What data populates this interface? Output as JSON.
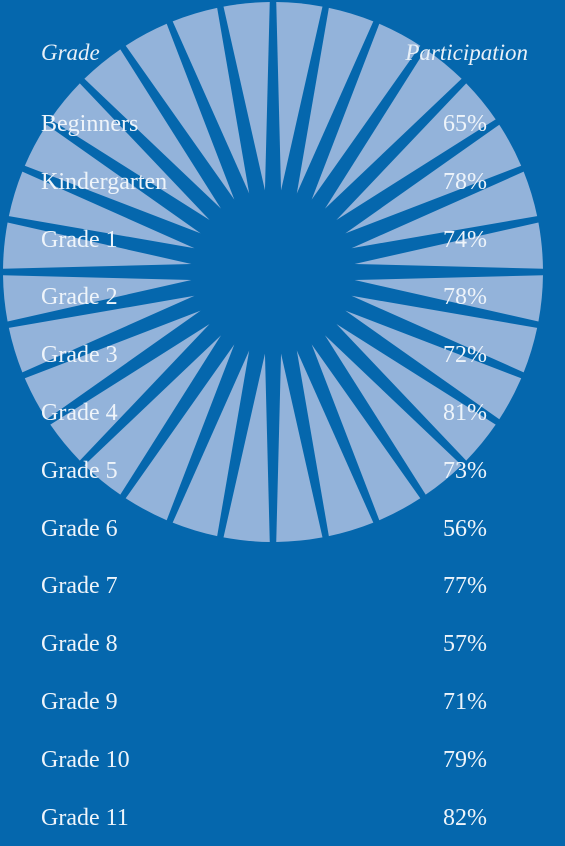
{
  "table": {
    "header": [
      "Grade",
      "Participation"
    ],
    "rows": [
      [
        "Beginners",
        "65%"
      ],
      [
        "Kindergarten",
        "78%"
      ],
      [
        "Grade 1",
        "74%"
      ],
      [
        "Grade 2",
        "78%"
      ],
      [
        "Grade 3",
        "72%"
      ],
      [
        "Grade 4",
        "81%"
      ],
      [
        "Grade 5",
        "73%"
      ],
      [
        "Grade 6",
        "56%"
      ],
      [
        "Grade 7",
        "77%"
      ],
      [
        "Grade 8",
        "57%"
      ],
      [
        "Grade 9",
        "71%"
      ],
      [
        "Grade 10",
        "79%"
      ],
      [
        "Grade 11",
        "82%"
      ]
    ]
  }
}
